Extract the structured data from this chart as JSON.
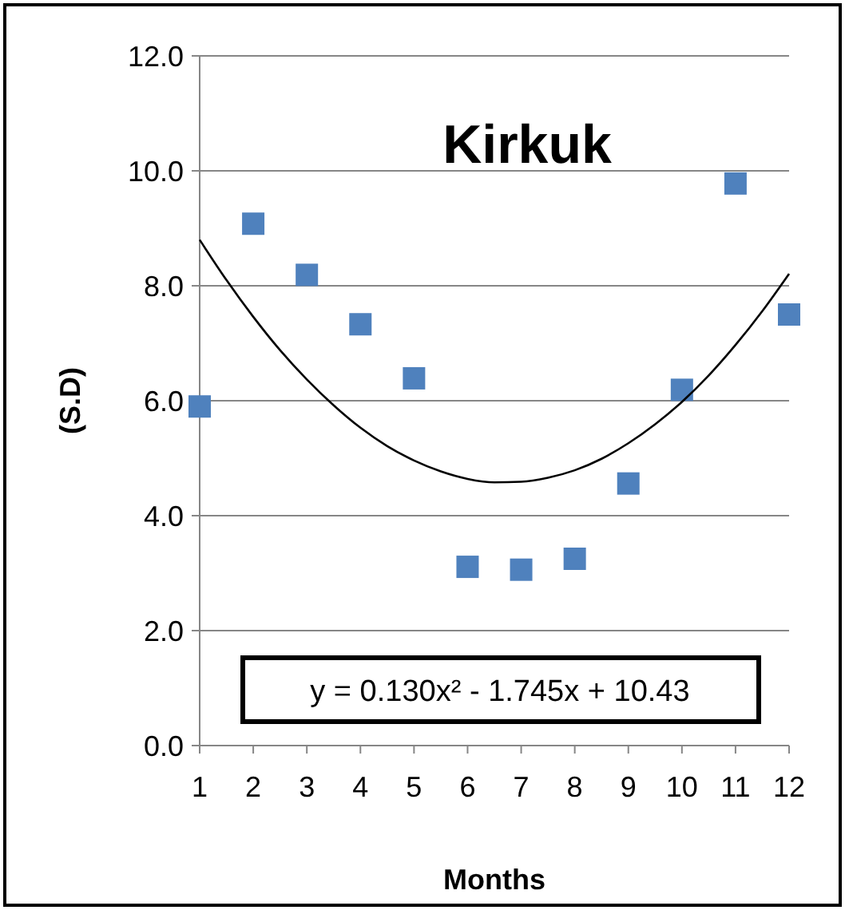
{
  "chart_data": {
    "type": "scatter",
    "title": "Kirkuk",
    "xlabel": "Months",
    "ylabel": "(S.D)",
    "x": [
      1,
      2,
      3,
      4,
      5,
      6,
      7,
      8,
      9,
      10,
      11,
      12
    ],
    "series": [
      {
        "color": "#4f81bd",
        "marker": "square",
        "values": [
          5.9,
          9.08,
          8.19,
          7.33,
          6.39,
          3.11,
          3.06,
          3.25,
          4.56,
          6.19,
          9.78,
          7.5
        ]
      },
      {
        "type": "line",
        "color": "#000000",
        "x": [
          1,
          1.5,
          2,
          2.5,
          3,
          3.5,
          4,
          4.5,
          5,
          5.5,
          6,
          6.5,
          7,
          7.5,
          8,
          8.5,
          9,
          9.5,
          10,
          10.5,
          11,
          11.5,
          12
        ],
        "values": [
          8.8,
          8.1,
          7.46,
          6.88,
          6.37,
          5.92,
          5.53,
          5.21,
          4.96,
          4.77,
          4.64,
          4.58,
          4.59,
          4.66,
          4.79,
          4.99,
          5.26,
          5.59,
          5.98,
          6.44,
          6.97,
          7.56,
          8.21
        ]
      }
    ],
    "annotations": [
      "y = 0.130x² - 1.745x + 10.43"
    ],
    "xlim": [
      1,
      12
    ],
    "xticks": [
      1,
      2,
      3,
      4,
      5,
      6,
      7,
      8,
      9,
      10,
      11,
      12
    ],
    "ylim": [
      0,
      12
    ],
    "yticks": [
      {
        "value": 0,
        "label": "0.0"
      },
      {
        "value": 2,
        "label": "2.0"
      },
      {
        "value": 4,
        "label": "4.0"
      },
      {
        "value": 6,
        "label": "6.0"
      },
      {
        "value": 8,
        "label": "8.0"
      },
      {
        "value": 10,
        "label": "10.0"
      },
      {
        "value": 12,
        "label": "12.0"
      }
    ],
    "grid": "y"
  }
}
